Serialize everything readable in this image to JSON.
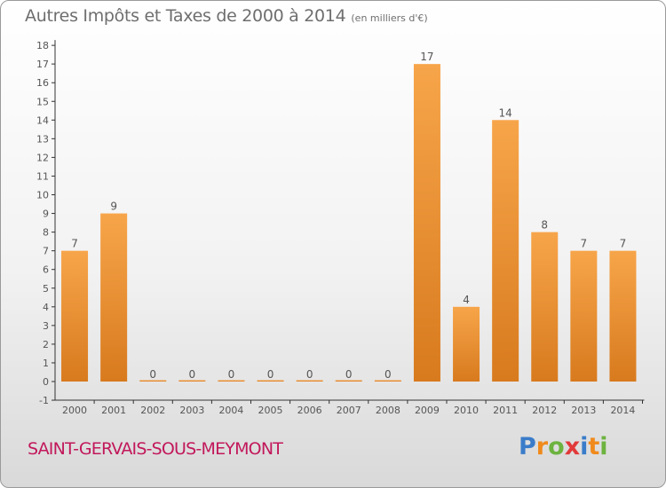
{
  "header": {
    "title": "Autres Impôts et Taxes de 2000 à 2014",
    "unit": "(en milliers d'€)"
  },
  "footer": {
    "commune": "SAINT-GERVAIS-SOUS-MEYMONT",
    "logo": {
      "text": "Proxiti",
      "letter_colors": [
        "#3a7cc9",
        "#f08a1c",
        "#6db33f",
        "#e23a3a",
        "#3a7cc9",
        "#f08a1c",
        "#6db33f"
      ]
    }
  },
  "colors": {
    "bar_top": "#f7a54a",
    "bar_bottom": "#d87a1e",
    "axis": "#333333",
    "text": "#555555",
    "commune": "#c2185b"
  },
  "chart_data": {
    "type": "bar",
    "title": "Autres Impôts et Taxes de 2000 à 2014",
    "subtitle": "(en milliers d'€)",
    "xlabel": "",
    "ylabel": "",
    "categories": [
      "2000",
      "2001",
      "2002",
      "2003",
      "2004",
      "2005",
      "2006",
      "2007",
      "2008",
      "2009",
      "2010",
      "2011",
      "2012",
      "2013",
      "2014"
    ],
    "values": [
      7,
      9,
      0,
      0,
      0,
      0,
      0,
      0,
      0,
      17,
      4,
      14,
      8,
      7,
      7
    ],
    "data_labels": [
      "7",
      "9",
      "0",
      "0",
      "0",
      "0",
      "0",
      "0",
      "0",
      "17",
      "4",
      "14",
      "8",
      "7",
      "7"
    ],
    "ylim": [
      -1,
      18
    ],
    "yticks": [
      "-1",
      "0",
      "1",
      "2",
      "3",
      "4",
      "5",
      "6",
      "7",
      "8",
      "9",
      "10",
      "11",
      "12",
      "13",
      "14",
      "15",
      "16",
      "17",
      "18"
    ],
    "grid": false,
    "legend": "none"
  }
}
